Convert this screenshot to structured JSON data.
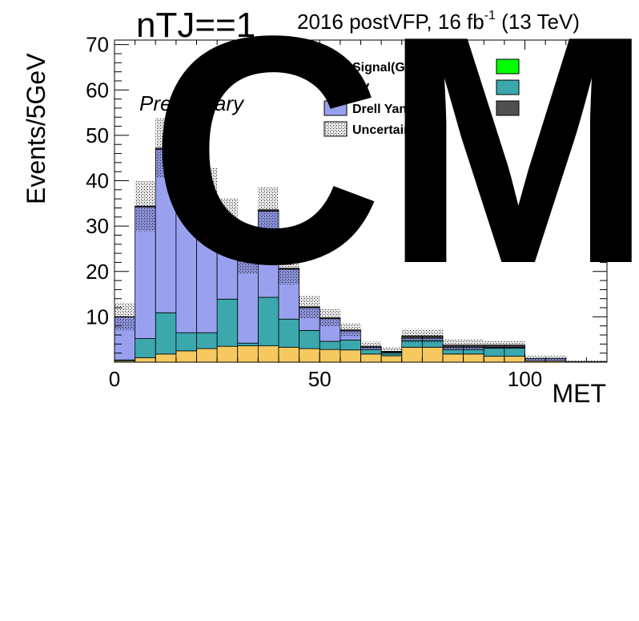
{
  "header": {
    "tag": "nTJ==1",
    "lumi": "2016 postVFP, 16 fb",
    "lumi_sup": "-1",
    "lumi_tail": " (13 TeV)",
    "preliminary": "Preliminary",
    "watermark": "CMS"
  },
  "colors": {
    "signal": "#ff0000",
    "vv": "#f5c960",
    "drell_yan": "#99a1ef",
    "top": "#3ba8ae",
    "green": "#00ff00",
    "dark": "#505050",
    "uncertainty": "#555555"
  },
  "chart_data": {
    "type": "bar",
    "stacked": true,
    "xlabel": "MET",
    "ylabel": "Events/5GeV",
    "xlim": [
      0,
      120
    ],
    "ylim": [
      0,
      71
    ],
    "bin_width": 5,
    "x_ticks": [
      0,
      50,
      100
    ],
    "y_ticks": [
      10,
      20,
      30,
      40,
      50,
      60,
      70
    ],
    "grid": false,
    "legend_position": "top-right",
    "legend": [
      {
        "label": "Signal(GG→ WW)",
        "color": "#ff0000",
        "hatch": false
      },
      {
        "label": "",
        "color": "#00ff00",
        "hatch": false
      },
      {
        "label": "VV",
        "color": "#f5c960",
        "hatch": false
      },
      {
        "label": "",
        "color": "#3ba8ae",
        "hatch": false
      },
      {
        "label": "Drell Yan",
        "color": "#99a1ef",
        "hatch": false
      },
      {
        "label": "",
        "color": "#505050",
        "hatch": false
      },
      {
        "label": "Uncertainty",
        "color": "#555555",
        "hatch": true
      }
    ],
    "bin_edges": [
      0,
      5,
      10,
      15,
      20,
      25,
      30,
      35,
      40,
      45,
      50,
      55,
      60,
      65,
      70,
      75,
      80,
      85,
      90,
      95,
      100,
      105,
      110,
      115,
      120
    ],
    "series": [
      {
        "name": "VV",
        "color": "#f5c960",
        "values": [
          0.3,
          1.0,
          1.8,
          2.5,
          3.0,
          3.5,
          3.6,
          3.6,
          3.3,
          3.0,
          2.8,
          2.7,
          1.8,
          1.4,
          3.3,
          3.3,
          1.8,
          1.8,
          1.3,
          1.3,
          0.3,
          0.3,
          0.1,
          0.1
        ]
      },
      {
        "name": "",
        "color": "#3ba8ae",
        "values": [
          0.2,
          4.2,
          9.1,
          4.0,
          3.5,
          10.4,
          0.6,
          10.7,
          6.2,
          4.0,
          1.8,
          2.2,
          1.0,
          0.6,
          1.5,
          1.5,
          1.0,
          1.0,
          1.8,
          1.8,
          0.0,
          0.0,
          0.0,
          0.0
        ]
      },
      {
        "name": "Drell Yan",
        "color": "#99a1ef",
        "values": [
          9.5,
          29.0,
          36.0,
          33.0,
          30.0,
          17.0,
          20.0,
          19.0,
          11.0,
          5.0,
          5.0,
          2.0,
          0.5,
          0.2,
          0.5,
          0.5,
          0.5,
          0.5,
          0.2,
          0.2,
          0.5,
          0.5,
          0.0,
          0.0
        ]
      },
      {
        "name": "",
        "color": "#505050",
        "values": [
          0.0,
          0.2,
          0.3,
          0.3,
          0.3,
          0.3,
          0.3,
          0.3,
          0.2,
          0.2,
          0.2,
          0.2,
          0.2,
          0.2,
          0.5,
          0.5,
          0.5,
          0.5,
          0.5,
          0.5,
          0.0,
          0.0,
          0.0,
          0.0
        ]
      }
    ],
    "uncertainty": [
      3.0,
      5.5,
      6.5,
      6.5,
      6.0,
      5.0,
      5.0,
      5.0,
      3.5,
      2.5,
      2.0,
      1.5,
      1.0,
      0.8,
      1.5,
      1.5,
      1.2,
      1.2,
      1.0,
      1.0,
      0.6,
      0.6,
      0.3,
      0.3
    ]
  }
}
